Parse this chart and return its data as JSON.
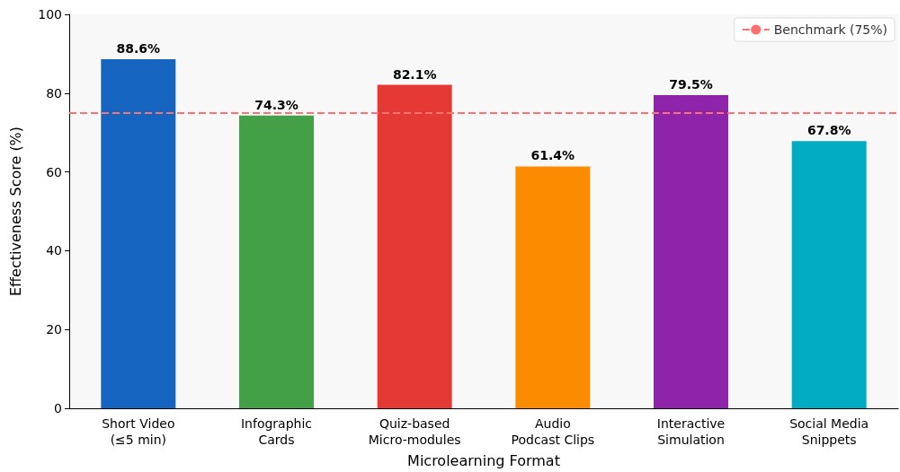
{
  "chart_data": {
    "type": "bar",
    "categories": [
      "Short Video\n(≤5 min)",
      "Infographic\nCards",
      "Quiz-based\nMicro-modules",
      "Audio\nPodcast Clips",
      "Interactive\nSimulation",
      "Social Media\nSnippets"
    ],
    "values": [
      88.6,
      74.3,
      82.1,
      61.4,
      79.5,
      67.8
    ],
    "value_labels": [
      "88.6%",
      "74.3%",
      "82.1%",
      "61.4%",
      "79.5%",
      "67.8%"
    ],
    "colors": [
      "#1565c0",
      "#43a047",
      "#e53935",
      "#fb8c00",
      "#8e24aa",
      "#00acc1"
    ],
    "xlabel": "Microlearning Format",
    "ylabel": "Effectiveness Score (%)",
    "ylim": [
      0,
      100
    ],
    "yticks": [
      0,
      20,
      40,
      60,
      80,
      100
    ],
    "ref_lines": [
      {
        "axis": "y",
        "value": 75,
        "label": "Benchmark (75%)",
        "color": "#ff7070",
        "line_style": "dashed"
      }
    ],
    "legend": "top right",
    "grid": false
  }
}
